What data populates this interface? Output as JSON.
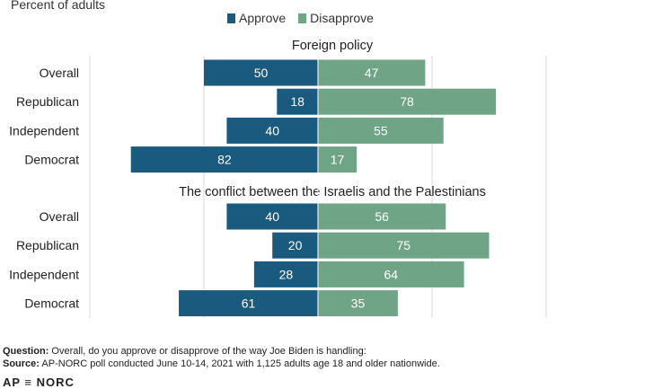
{
  "subtitle": "Percent of adults",
  "legend": {
    "approve": "Approve",
    "disapprove": "Disapprove"
  },
  "colors": {
    "approve": "#1a5a7e",
    "disapprove": "#6fa487",
    "grid": "#d9d9d9"
  },
  "chart_data": {
    "type": "bar",
    "orientation": "horizontal-diverging",
    "xlim": [
      -100,
      100
    ],
    "grid": true,
    "legend_position": "top-center",
    "panels": [
      {
        "title": "Foreign policy",
        "categories": [
          "Overall",
          "Republican",
          "Independent",
          "Democrat"
        ],
        "series": [
          {
            "name": "Approve",
            "values": [
              50,
              18,
              40,
              82
            ]
          },
          {
            "name": "Disapprove",
            "values": [
              47,
              78,
              55,
              17
            ]
          }
        ]
      },
      {
        "title": "The conflict between the Israelis and the Palestinians",
        "categories": [
          "Overall",
          "Republican",
          "Independent",
          "Democrat"
        ],
        "series": [
          {
            "name": "Approve",
            "values": [
              40,
              20,
              28,
              61
            ]
          },
          {
            "name": "Disapprove",
            "values": [
              56,
              75,
              64,
              35
            ]
          }
        ]
      }
    ]
  },
  "notes": {
    "question_label": "Question:",
    "question_text": " Overall, do you approve or disapprove of the way Joe Biden is handling:",
    "source_label": "Source:",
    "source_text": " AP-NORC poll conducted June 10-14, 2021 with 1,125 adults age 18 and older nationwide."
  },
  "brand": "AP ≡ NORC"
}
